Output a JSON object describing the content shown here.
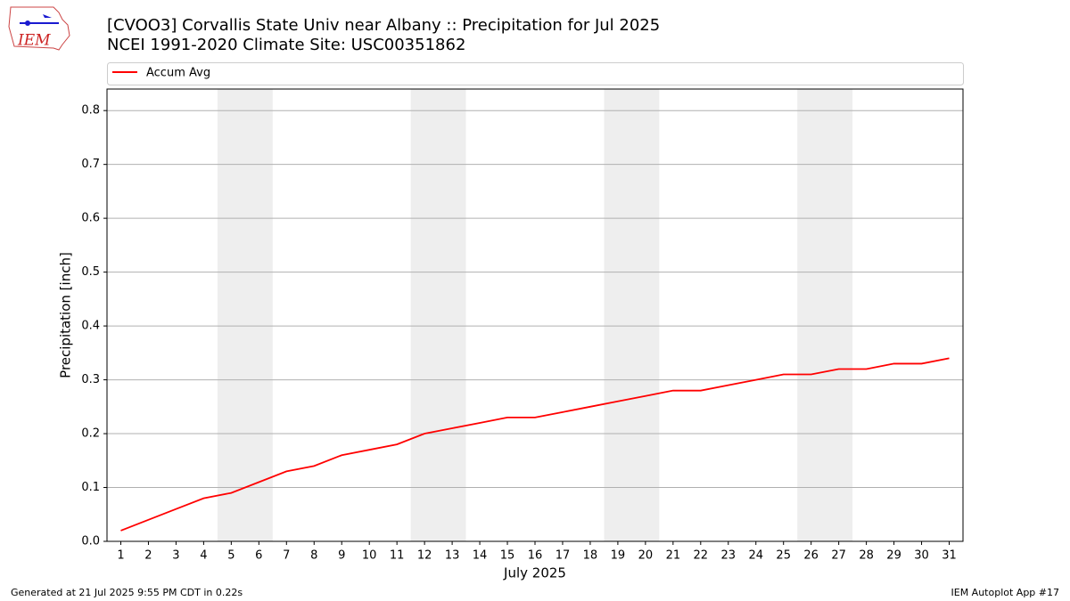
{
  "chart_data": {
    "type": "line",
    "title": "[CVOO3] Corvallis State Univ near Albany :: Precipitation for Jul 2025",
    "subtitle": "NCEI 1991-2020 Climate Site: USC00351862",
    "xlabel": "July 2025",
    "ylabel": "Precipitation [inch]",
    "x": [
      1,
      2,
      3,
      4,
      5,
      6,
      7,
      8,
      9,
      10,
      11,
      12,
      13,
      14,
      15,
      16,
      17,
      18,
      19,
      20,
      21,
      22,
      23,
      24,
      25,
      26,
      27,
      28,
      29,
      30,
      31
    ],
    "series": [
      {
        "name": "Accum Avg",
        "color": "#ff0000",
        "values": [
          0.02,
          0.04,
          0.06,
          0.08,
          0.09,
          0.11,
          0.13,
          0.14,
          0.16,
          0.17,
          0.18,
          0.2,
          0.21,
          0.22,
          0.23,
          0.23,
          0.24,
          0.25,
          0.26,
          0.27,
          0.28,
          0.28,
          0.29,
          0.3,
          0.31,
          0.31,
          0.32,
          0.32,
          0.33,
          0.33,
          0.34
        ]
      }
    ],
    "xlim": [
      0.5,
      31.5
    ],
    "ylim": [
      0,
      0.84
    ],
    "xticks": [
      1,
      2,
      3,
      4,
      5,
      6,
      7,
      8,
      9,
      10,
      11,
      12,
      13,
      14,
      15,
      16,
      17,
      18,
      19,
      20,
      21,
      22,
      23,
      24,
      25,
      26,
      27,
      28,
      29,
      30,
      31
    ],
    "yticks": [
      {
        "value": 0,
        "label": "0.0"
      },
      0.1,
      0.2,
      0.3,
      0.4,
      0.5,
      0.6,
      0.7,
      0.8
    ],
    "grid": true,
    "legend": "top",
    "shaded_spans": [
      [
        4.5,
        6.5
      ],
      [
        11.5,
        13.5
      ],
      [
        18.5,
        20.5
      ],
      [
        25.5,
        27.5
      ]
    ],
    "shade_color": "#eeeeee"
  },
  "logo_text": "IEM",
  "footer": {
    "left": "Generated at 21 Jul 2025 9:55 PM CDT in 0.22s",
    "right": "IEM Autoplot App #17"
  }
}
